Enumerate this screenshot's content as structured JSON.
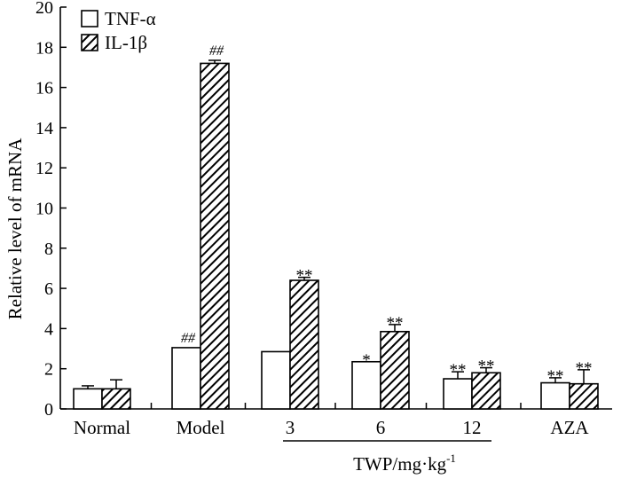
{
  "chart_data": {
    "type": "bar",
    "title": "",
    "ylabel": "Relative level of mRNA",
    "xlabel": "TWP/mg·kg",
    "xlabel_sup": "-1",
    "ylim": [
      0,
      20
    ],
    "yticks": [
      0,
      2,
      4,
      6,
      8,
      10,
      12,
      14,
      16,
      18,
      20
    ],
    "categories": [
      "Normal",
      "Model",
      "3",
      "6",
      "12",
      "AZA"
    ],
    "bracket_categories": [
      "3",
      "6",
      "12"
    ],
    "legend_position": "top-left",
    "series": [
      {
        "name": "TNF-α",
        "fill": "white",
        "values": [
          1.0,
          3.05,
          2.85,
          2.35,
          1.5,
          1.3
        ],
        "errors": [
          0.15,
          0.0,
          0.0,
          0.0,
          0.35,
          0.25
        ],
        "annotations": [
          "",
          "##",
          "",
          "*",
          "**",
          "**"
        ]
      },
      {
        "name": "IL-1β",
        "fill": "hatched",
        "values": [
          1.0,
          17.2,
          6.4,
          3.85,
          1.8,
          1.25
        ],
        "errors": [
          0.45,
          0.15,
          0.15,
          0.35,
          0.25,
          0.7
        ],
        "annotations": [
          "",
          "##",
          "**",
          "**",
          "**",
          "**"
        ]
      }
    ]
  },
  "colors": {
    "axis": "#000000",
    "bar_outline": "#000000",
    "background": "#ffffff"
  }
}
